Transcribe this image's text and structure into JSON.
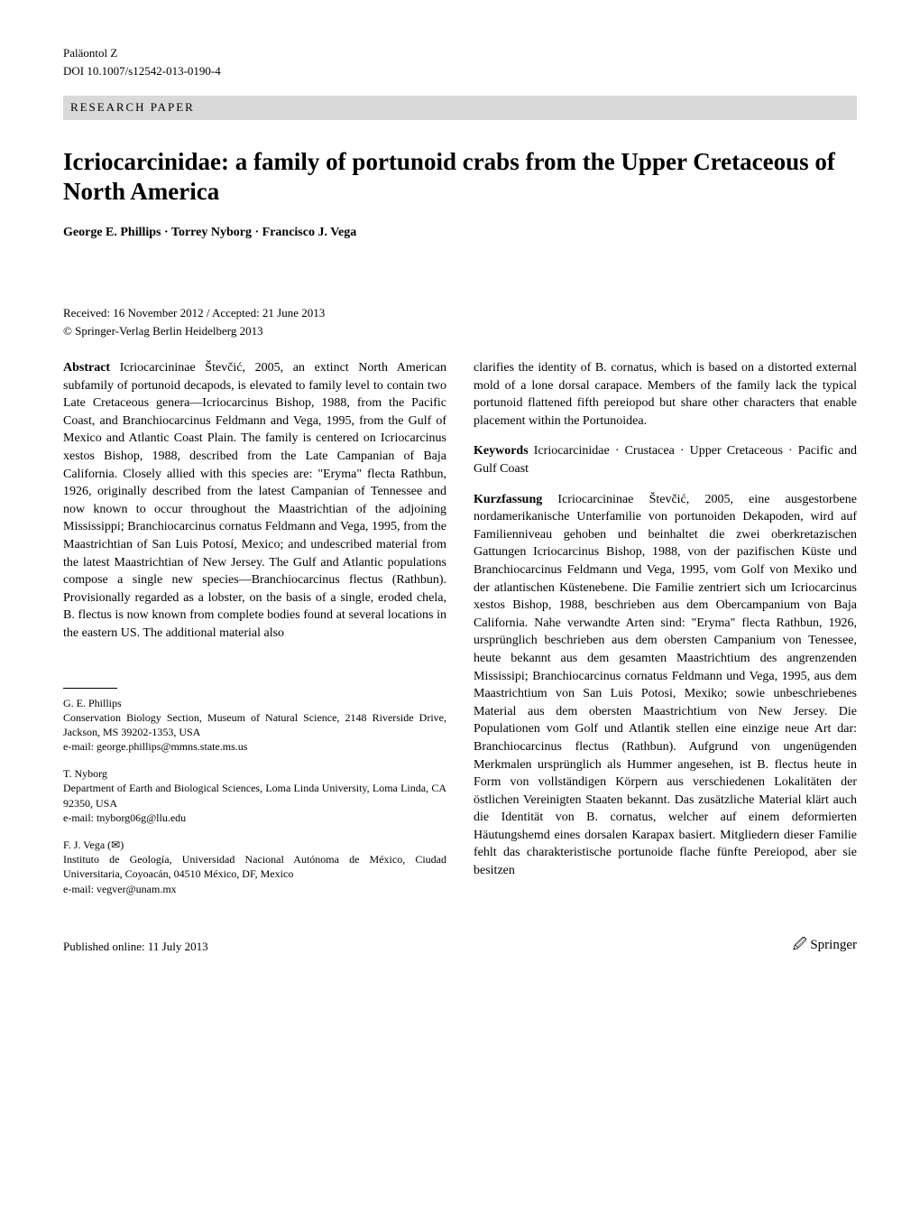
{
  "header": {
    "journal": "Paläontol Z",
    "doi": "DOI 10.1007/s12542-013-0190-4",
    "category": "RESEARCH PAPER"
  },
  "title": "Icriocarcinidae: a family of portunoid crabs from the Upper Cretaceous of North America",
  "authors": "George E. Phillips · Torrey Nyborg · Francisco J. Vega",
  "dates": {
    "received_accepted": "Received: 16 November 2012 / Accepted: 21 June 2013",
    "copyright": "© Springer-Verlag Berlin Heidelberg 2013"
  },
  "left_column": {
    "abstract_label": "Abstract",
    "abstract_body": "  Icriocarcininae Števčić, 2005, an extinct North American subfamily of portunoid decapods, is elevated to family level to contain two Late Cretaceous genera—Icriocarcinus Bishop, 1988, from the Pacific Coast, and Branchiocarcinus Feldmann and Vega, 1995, from the Gulf of Mexico and Atlantic Coast Plain. The family is centered on Icriocarcinus xestos Bishop, 1988, described from the Late Campanian of Baja California. Closely allied with this species are: \"Eryma\" flecta Rathbun, 1926, originally described from the latest Campanian of Tennessee and now known to occur throughout the Maastrichtian of the adjoining Mississippi; Branchiocarcinus cornatus Feldmann and Vega, 1995, from the Maastrichtian of San Luis Potosí, Mexico; and undescribed material from the latest Maastrichtian of New Jersey. The Gulf and Atlantic populations compose a single new species—Branchiocarcinus flectus (Rathbun). Provisionally regarded as a lobster, on the basis of a single, eroded chela, B. flectus is now known from complete bodies found at several locations in the eastern US. The additional material also",
    "affiliations": {
      "a1": {
        "name": "G. E. Phillips",
        "lines": "Conservation Biology Section, Museum of Natural Science, 2148 Riverside Drive, Jackson, MS 39202-1353, USA",
        "email": "e-mail: george.phillips@mmns.state.ms.us"
      },
      "a2": {
        "name": "T. Nyborg",
        "lines": "Department of Earth and Biological Sciences, Loma Linda University, Loma Linda, CA 92350, USA",
        "email": "e-mail: tnyborg06g@llu.edu"
      },
      "a3": {
        "name": "F. J. Vega (✉)",
        "lines": "Instituto de Geología, Universidad Nacional Autónoma de México, Ciudad Universitaria, Coyoacán, 04510 México, DF, Mexico",
        "email": "e-mail: vegver@unam.mx"
      }
    }
  },
  "right_column": {
    "abstract_continuation": "clarifies the identity of B. cornatus, which is based on a distorted external mold of a lone dorsal carapace. Members of the family lack the typical portunoid flattened fifth pereiopod but share other characters that enable placement within the Portunoidea.",
    "keywords_label": "Keywords",
    "keywords_body": "  Icriocarcinidae · Crustacea · Upper Cretaceous · Pacific and Gulf Coast",
    "kurz_label": "Kurzfassung",
    "kurz_body": "  Icriocarcininae Števčić, 2005, eine ausgestorbene nordamerikanische Unterfamilie von portunoiden Dekapoden, wird auf Familienniveau gehoben und beinhaltet die zwei oberkretazischen Gattungen Icriocarcinus Bishop, 1988, von der pazifischen Küste und Branchiocarcinus Feldmann und Vega, 1995, vom Golf von Mexiko und der atlantischen Küstenebene. Die Familie zentriert sich um Icriocarcinus xestos Bishop, 1988, beschrieben aus dem Obercampanium von Baja California. Nahe verwandte Arten sind: \"Eryma\" flecta Rathbun, 1926, ursprünglich beschrieben aus dem obersten Campanium von Tenessee, heute bekannt aus dem gesamten Maastrichtium des angrenzenden Mississipi; Branchiocarcinus cornatus Feldmann und Vega, 1995, aus dem Maastrichtium von San Luis Potosi, Mexiko; sowie unbeschriebenes Material aus dem obersten Maastrichtium von New Jersey. Die Populationen vom Golf und Atlantik stellen eine einzige neue Art dar: Branchiocarcinus flectus (Rathbun). Aufgrund von ungenügenden Merkmalen ursprünglich als Hummer angesehen, ist B. flectus heute in Form von vollständigen Körpern aus verschiedenen Lokalitäten der östlichen Vereinigten Staaten bekannt. Das zusätzliche Material klärt auch die Identität von B. cornatus, welcher auf einem deformierten Häutungshemd eines dorsalen Karapax basiert. Mitgliedern dieser Familie fehlt das charakteristische portunoide flache fünfte Pereiopod, aber sie besitzen"
  },
  "footer": {
    "published": "Published online: 11 July 2013",
    "logo": "🖉 Springer"
  },
  "colors": {
    "category_bg": "#d9d9d9",
    "text": "#000000",
    "background": "#ffffff"
  },
  "typography": {
    "body_fontsize": 14,
    "title_fontsize": 27,
    "small_fontsize": 13,
    "affil_fontsize": 12
  }
}
